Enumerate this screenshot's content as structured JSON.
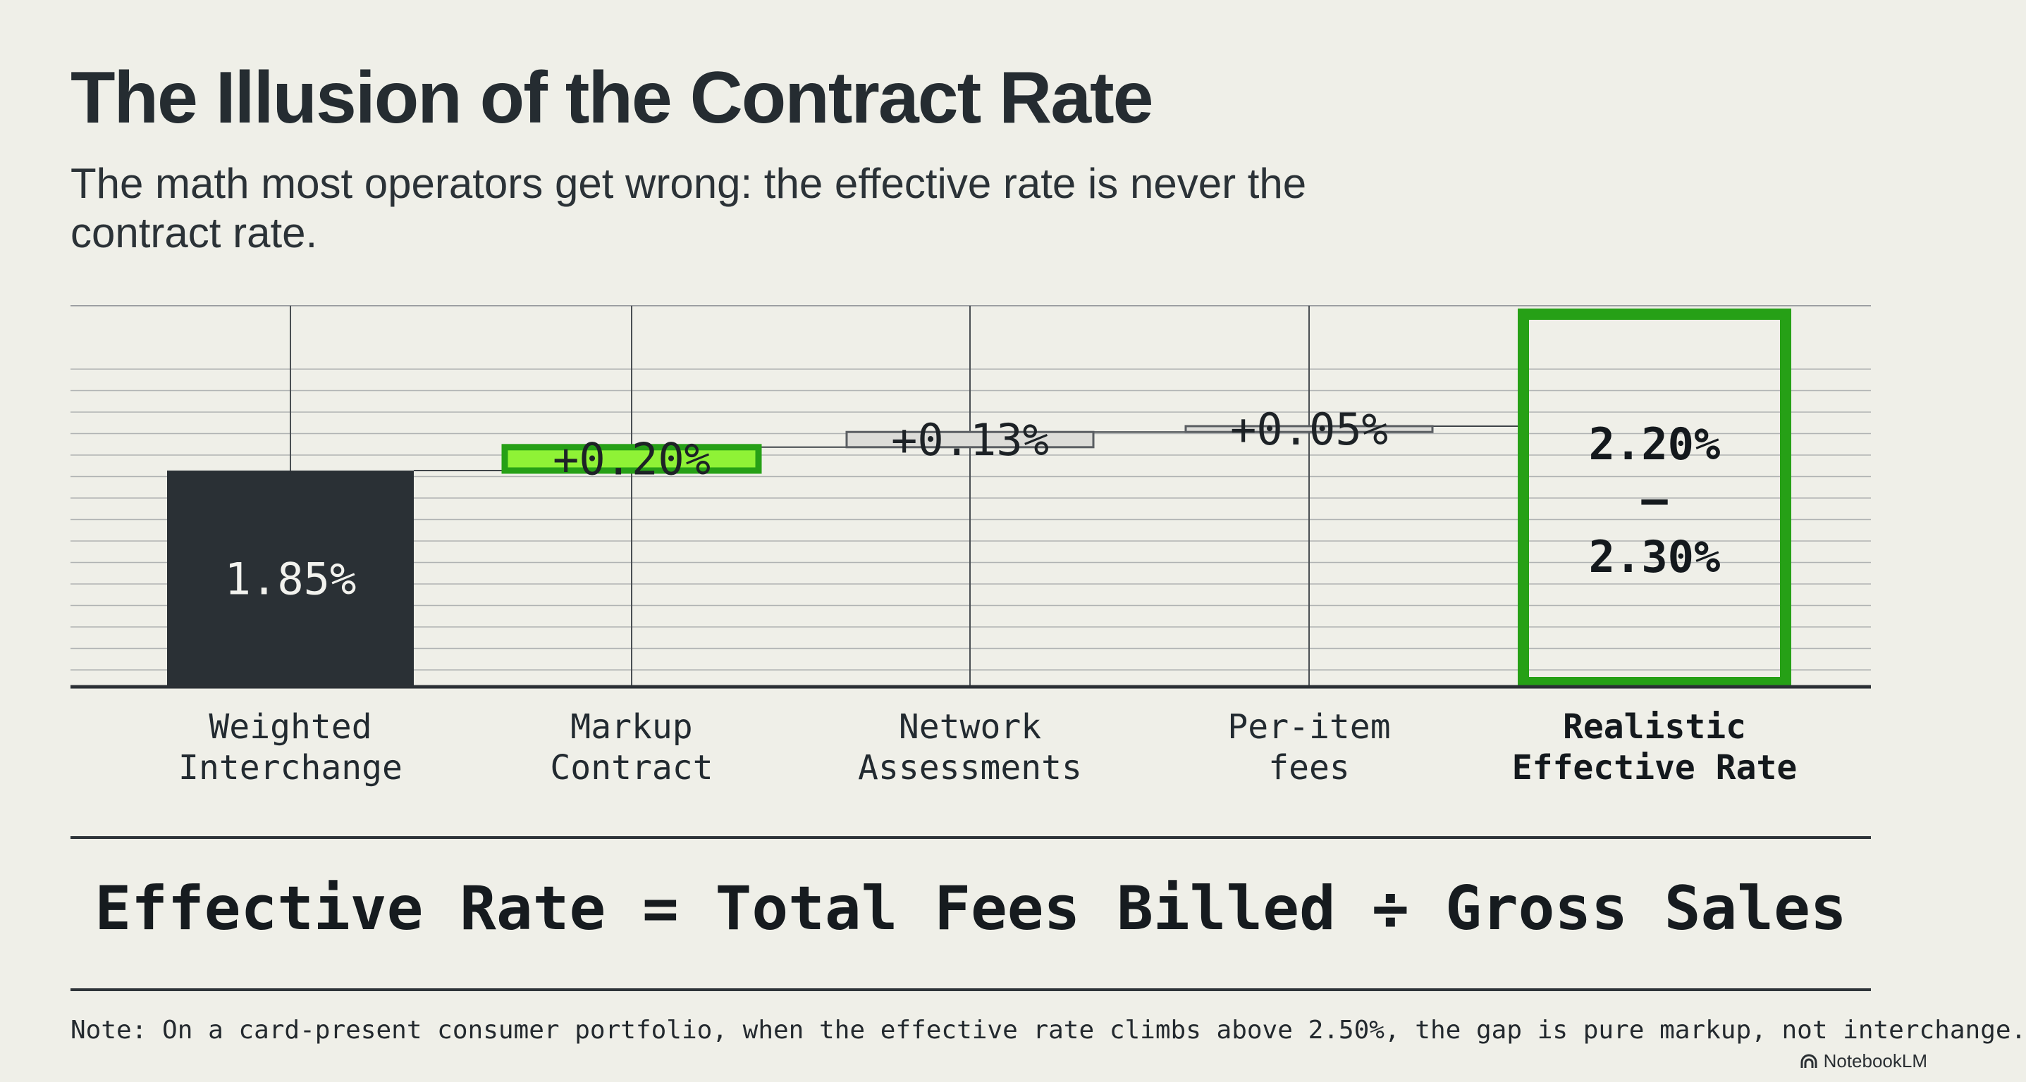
{
  "header": {
    "title": "The Illusion of the Contract Rate",
    "subtitle": "The math most operators get wrong: the effective rate is never the contract rate."
  },
  "colors": {
    "dark_bar": "#2a3035",
    "accent_green": "#8ff236",
    "green_border": "#26a016",
    "gray_box": "#dcdcd8",
    "gray_border": "#5a5e62",
    "grid": "#9c9fa2",
    "axis": "#2b3035"
  },
  "chart_data": {
    "type": "bar",
    "subtype": "waterfall",
    "categories": [
      [
        "Weighted",
        "Interchange"
      ],
      [
        "Markup",
        "Contract"
      ],
      [
        "Network",
        "Assessments"
      ],
      [
        "Per-item",
        "fees"
      ],
      [
        "Realistic",
        "Effective Rate"
      ]
    ],
    "bars": [
      {
        "kind": "base",
        "start": 0,
        "end": 1.85,
        "label": "1.85%"
      },
      {
        "kind": "increment",
        "start": 1.85,
        "end": 2.05,
        "label": "+0.20%"
      },
      {
        "kind": "increment",
        "start": 2.05,
        "end": 2.18,
        "label": "+0.13%"
      },
      {
        "kind": "increment",
        "start": 2.18,
        "end": 2.23,
        "label": "+0.05%"
      },
      {
        "kind": "total",
        "start": 0,
        "end": 2.3,
        "range": [
          2.2,
          2.3
        ],
        "label_lines": [
          "2.20%",
          "–",
          "2.30%"
        ]
      }
    ],
    "grid": true,
    "legend": "none"
  },
  "formula": "Effective Rate = Total Fees Billed ÷ Gross Sales",
  "note": "Note: On a card-present consumer portfolio, when the effective rate climbs above 2.50%, the gap is pure markup, not interchange.",
  "brand": {
    "name": "NotebookLM",
    "icon": "notebooklm-logo-icon"
  }
}
